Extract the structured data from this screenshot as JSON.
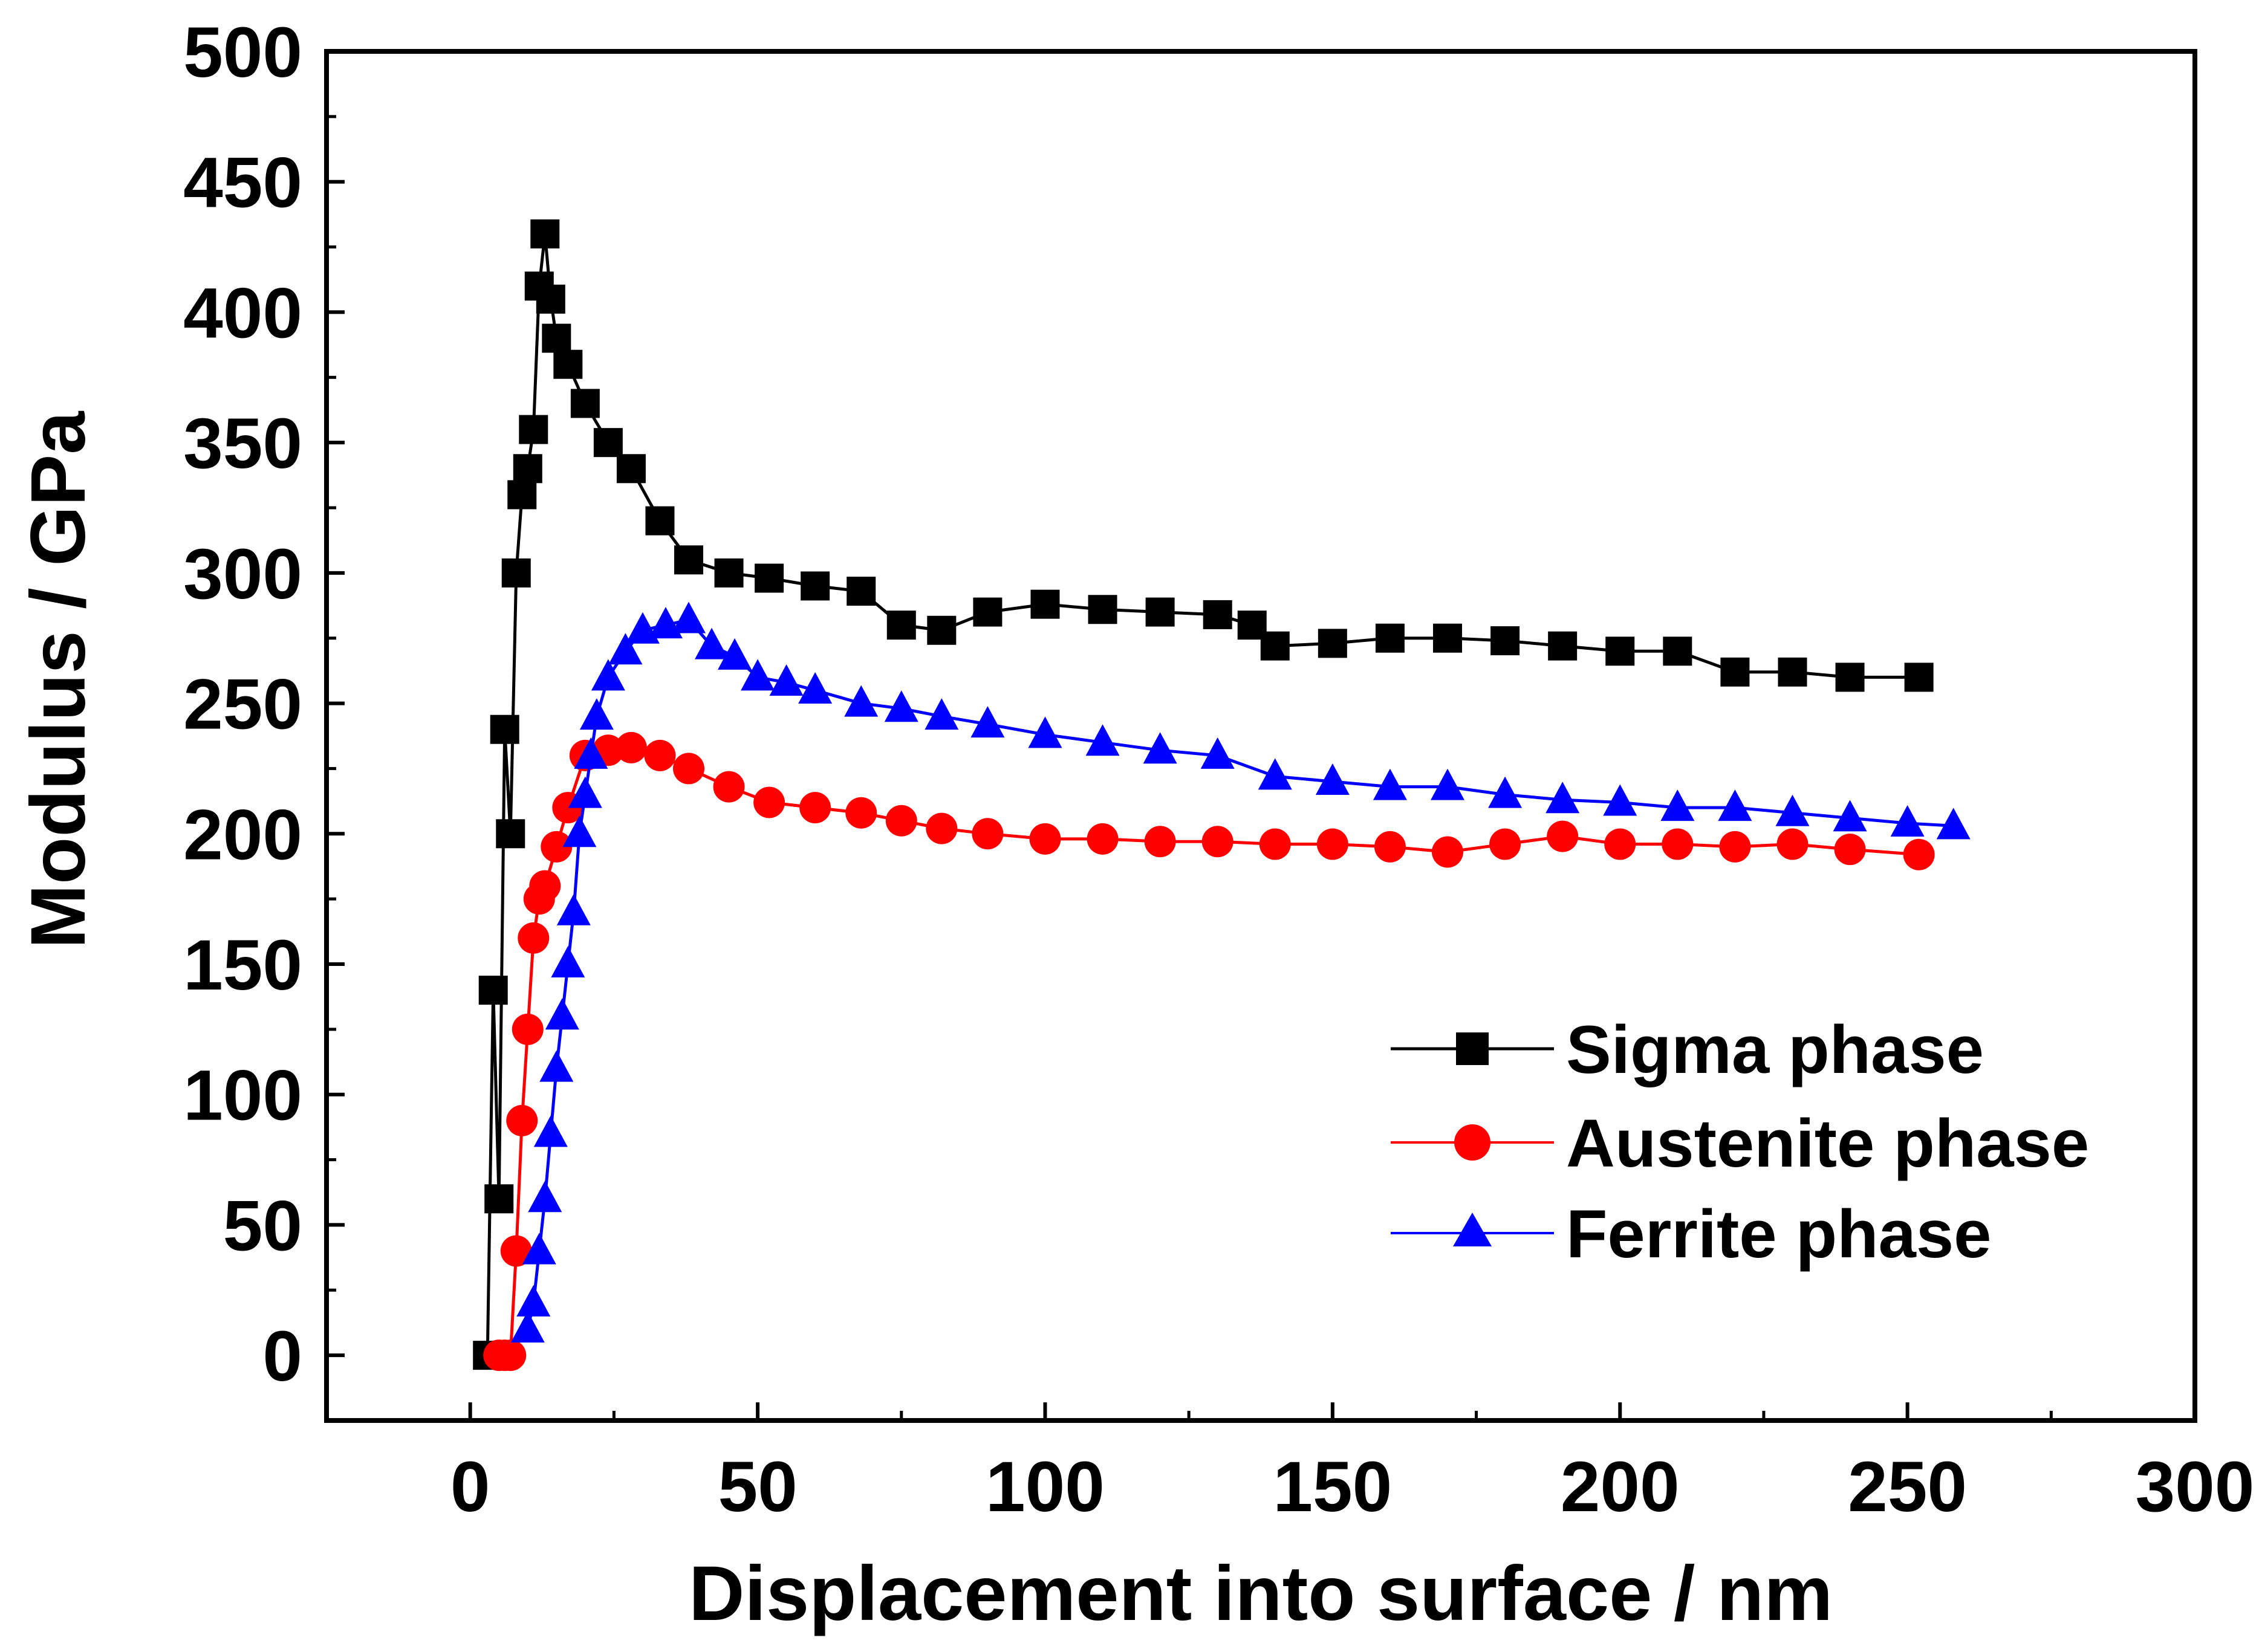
{
  "chart_data": {
    "type": "line",
    "title": "",
    "xlabel": "Displacement into surface / nm",
    "ylabel": "Modulus / GPa",
    "xlim": [
      -25,
      300
    ],
    "ylim": [
      -25,
      500
    ],
    "xticks": [
      0,
      50,
      100,
      150,
      200,
      250,
      300
    ],
    "yticks": [
      0,
      50,
      100,
      150,
      200,
      250,
      300,
      350,
      400,
      450,
      500
    ],
    "grid": false,
    "legend_position": "lower-right",
    "series": [
      {
        "name": "Sigma phase",
        "color": "#000000",
        "marker": "square",
        "x": [
          3,
          4,
          5,
          6,
          7,
          8,
          9,
          10,
          11,
          12,
          13,
          14,
          15,
          17,
          20,
          24,
          28,
          33,
          38,
          45,
          52,
          60,
          68,
          75,
          82,
          90,
          100,
          110,
          120,
          130,
          136,
          140,
          150,
          160,
          170,
          180,
          190,
          200,
          210,
          220,
          230,
          240,
          252
        ],
        "y": [
          0,
          140,
          60,
          240,
          200,
          300,
          330,
          340,
          355,
          410,
          430,
          405,
          390,
          380,
          365,
          350,
          340,
          320,
          305,
          300,
          298,
          295,
          293,
          280,
          278,
          285,
          288,
          286,
          285,
          284,
          280,
          272,
          273,
          275,
          275,
          274,
          272,
          270,
          270,
          262,
          262,
          260,
          260
        ]
      },
      {
        "name": "Austenite phase",
        "color": "#ff0000",
        "marker": "circle",
        "x": [
          5,
          6,
          7,
          8,
          9,
          10,
          11,
          12,
          13,
          15,
          17,
          20,
          24,
          28,
          33,
          38,
          45,
          52,
          60,
          68,
          75,
          82,
          90,
          100,
          110,
          120,
          130,
          140,
          150,
          160,
          170,
          180,
          190,
          200,
          210,
          220,
          230,
          240,
          252
        ],
        "y": [
          0,
          0,
          0,
          40,
          90,
          125,
          160,
          175,
          180,
          195,
          210,
          230,
          232,
          233,
          230,
          225,
          218,
          212,
          210,
          208,
          205,
          202,
          200,
          198,
          198,
          197,
          197,
          196,
          196,
          195,
          193,
          196,
          199,
          196,
          196,
          195,
          196,
          194,
          192
        ]
      },
      {
        "name": "Ferrite phase",
        "color": "#0000ff",
        "marker": "triangle",
        "x": [
          10,
          11,
          12,
          13,
          14,
          15,
          16,
          17,
          18,
          19,
          20,
          21,
          22,
          24,
          27,
          30,
          34,
          38,
          42,
          46,
          50,
          55,
          60,
          68,
          75,
          82,
          90,
          100,
          110,
          120,
          130,
          140,
          150,
          160,
          170,
          180,
          190,
          200,
          210,
          220,
          230,
          240,
          250,
          258
        ],
        "y": [
          10,
          20,
          40,
          60,
          85,
          110,
          130,
          150,
          170,
          200,
          215,
          230,
          245,
          260,
          270,
          278,
          280,
          282,
          272,
          268,
          260,
          258,
          255,
          250,
          248,
          245,
          242,
          238,
          235,
          232,
          230,
          222,
          220,
          218,
          218,
          215,
          213,
          212,
          210,
          210,
          208,
          206,
          204,
          203
        ]
      }
    ]
  }
}
